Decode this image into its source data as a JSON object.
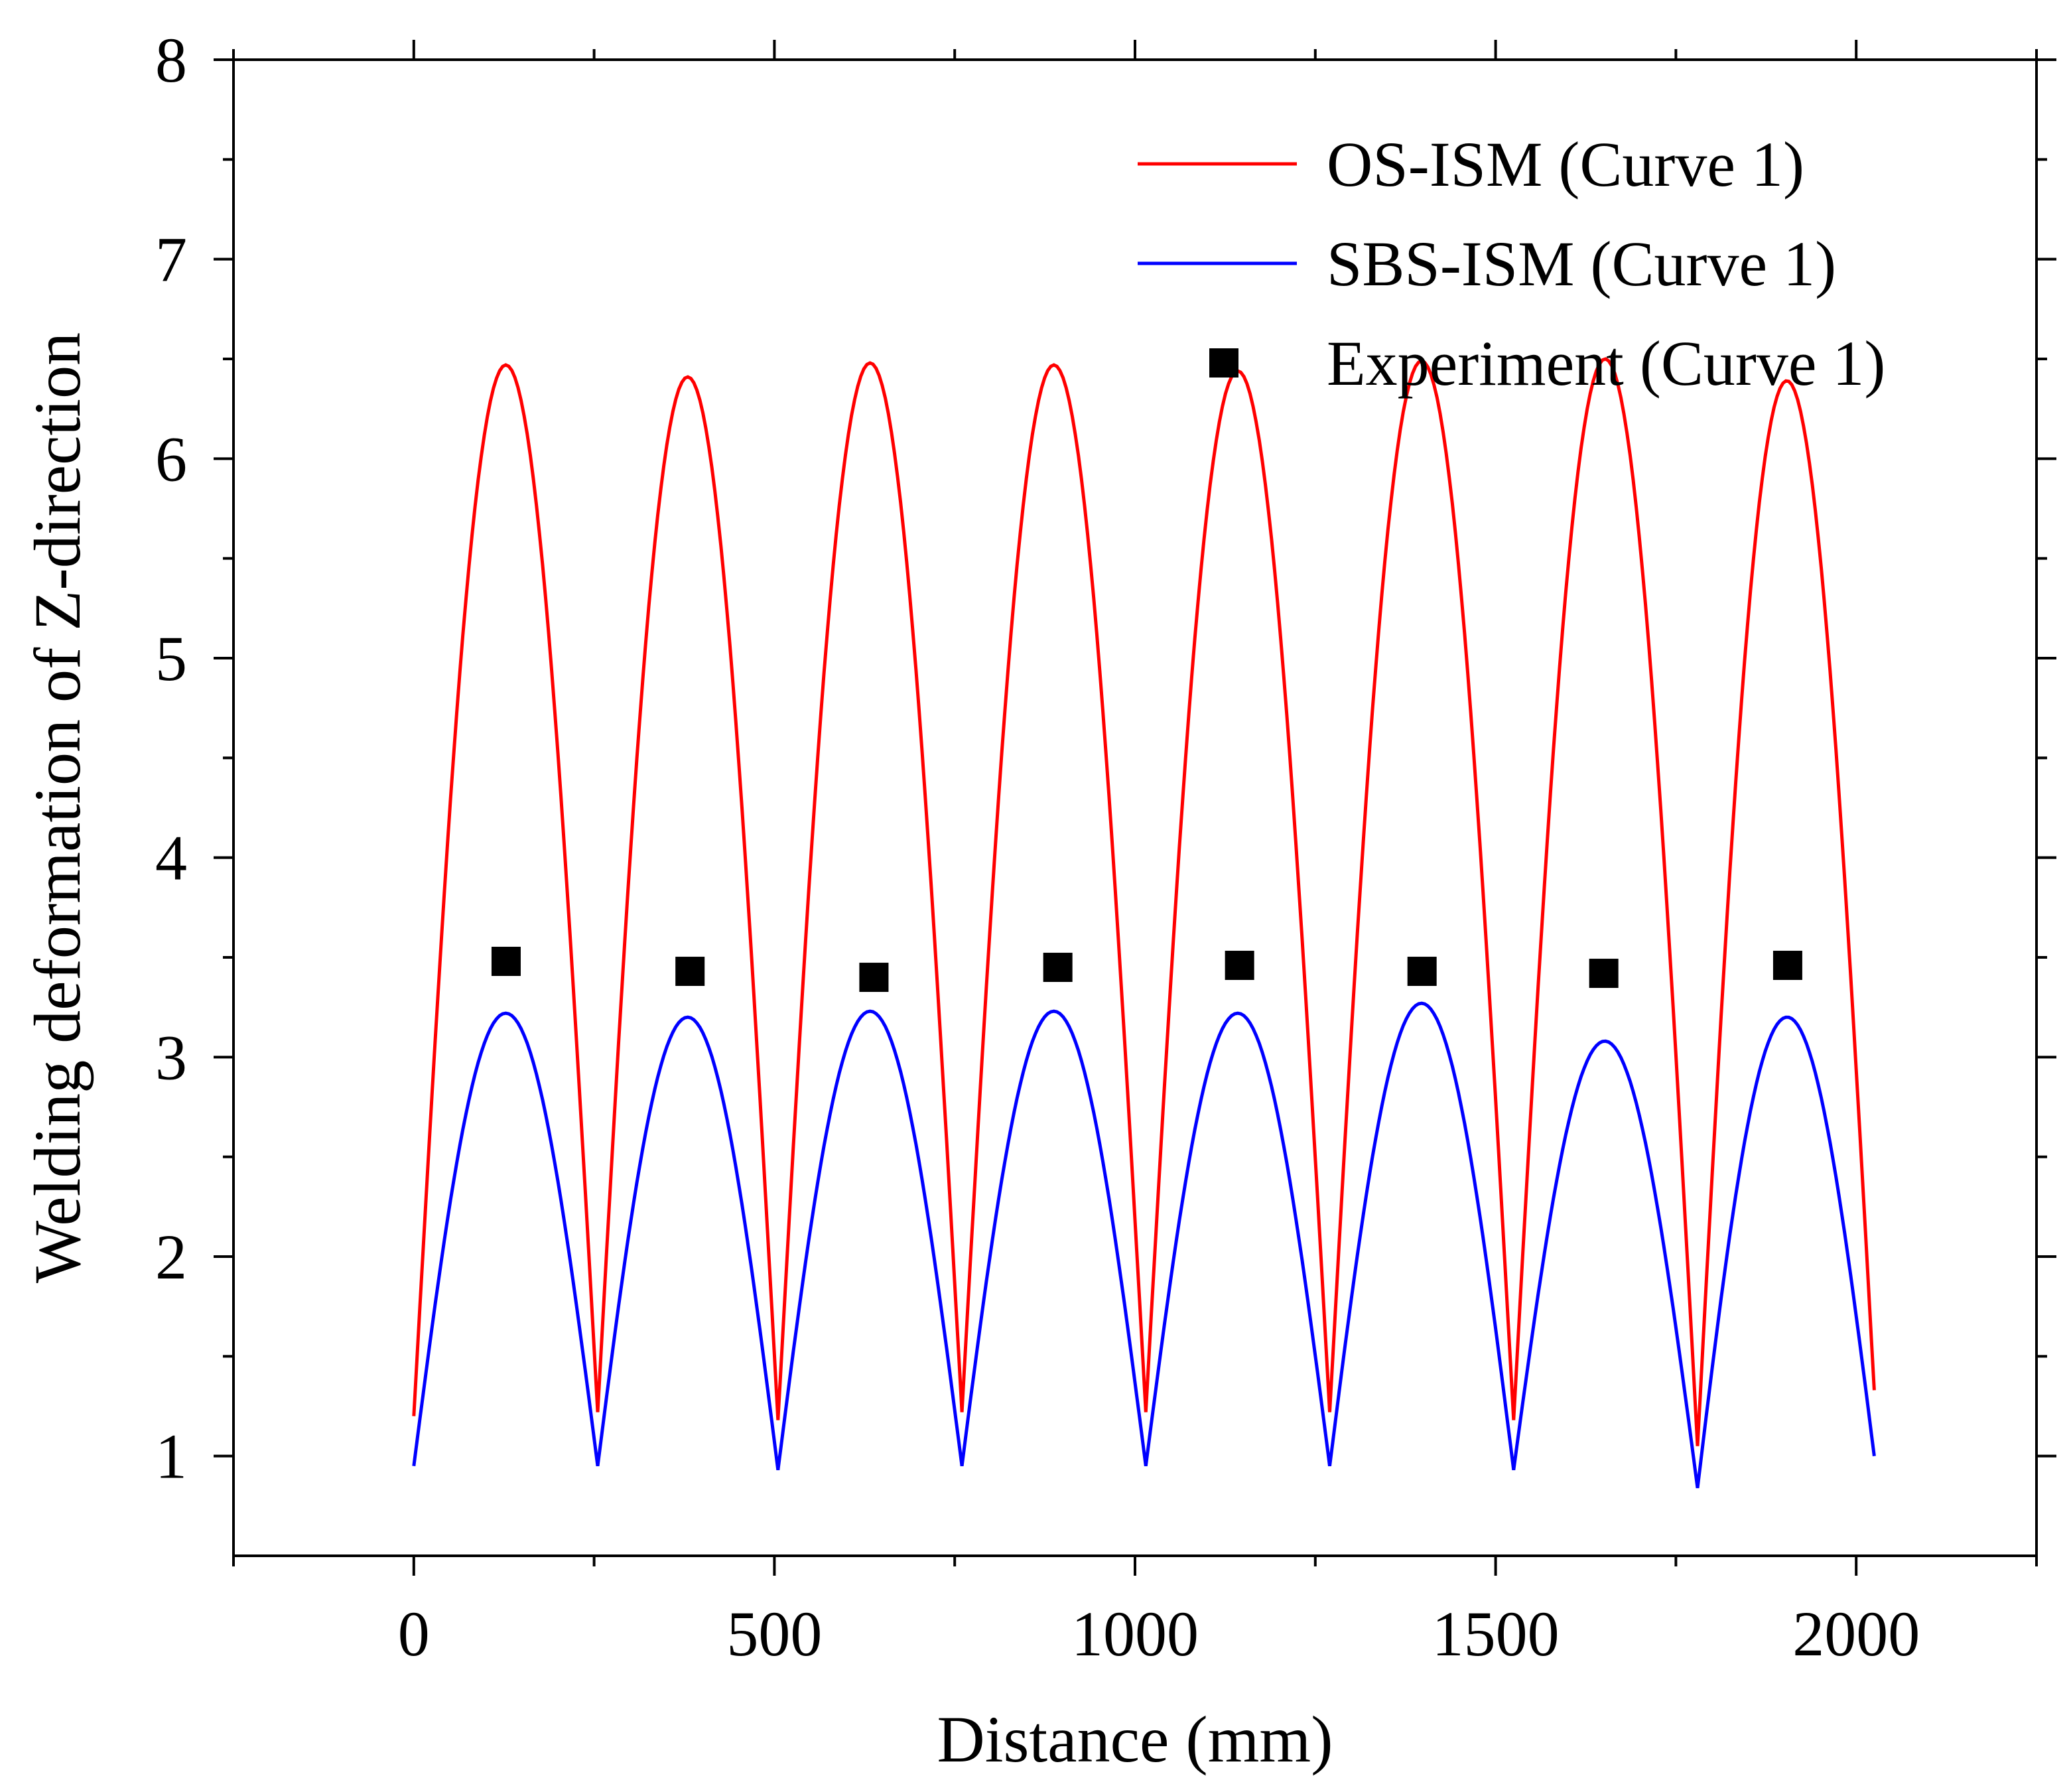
{
  "chart_data": {
    "type": "line",
    "title": "",
    "xlabel": "Distance (mm)",
    "ylabel": "Welding deformation of Z-direction",
    "xlim": [
      -250,
      2250
    ],
    "ylim": [
      0.5,
      8
    ],
    "xticks": [
      0,
      500,
      1000,
      1500,
      2000
    ],
    "xtick_labels": [
      "0",
      "500",
      "1000",
      "1500",
      "2000"
    ],
    "yticks": [
      1,
      2,
      3,
      4,
      5,
      6,
      7,
      8
    ],
    "ytick_labels": [
      "1",
      "2",
      "3",
      "4",
      "5",
      "6",
      "7",
      "8"
    ],
    "grid": false,
    "legend_position": "top-right",
    "series": [
      {
        "name": "OS-ISM (Curve 1)",
        "style": "line",
        "color": "#ff0000",
        "boundaries": [
          0,
          255,
          505,
          760,
          1015,
          1270,
          1525,
          1780,
          2025
        ],
        "boundary_values": [
          1.2,
          1.22,
          1.18,
          1.22,
          1.22,
          1.22,
          1.18,
          1.05,
          1.33
        ],
        "peaks": [
          6.47,
          6.41,
          6.48,
          6.47,
          6.44,
          6.49,
          6.5,
          6.39
        ]
      },
      {
        "name": "SBS-ISM (Curve 1)",
        "style": "line",
        "color": "#0000ff",
        "boundaries": [
          0,
          255,
          505,
          760,
          1015,
          1270,
          1525,
          1780,
          2025
        ],
        "boundary_values": [
          0.95,
          0.95,
          0.93,
          0.95,
          0.95,
          0.95,
          0.93,
          0.84,
          1.0
        ],
        "peaks": [
          3.22,
          3.2,
          3.23,
          3.23,
          3.22,
          3.27,
          3.08,
          3.2
        ]
      },
      {
        "name": "Experiment (Curve 1)",
        "style": "marker-square",
        "color": "#000000",
        "x": [
          128,
          383,
          638,
          893,
          1145,
          1398,
          1650,
          1905
        ],
        "y": [
          3.48,
          3.43,
          3.4,
          3.45,
          3.46,
          3.43,
          3.42,
          3.46
        ]
      }
    ]
  }
}
